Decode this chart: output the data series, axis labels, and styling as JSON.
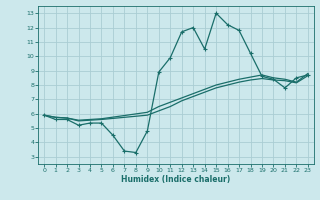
{
  "xlabel": "Humidex (Indice chaleur)",
  "bg_color": "#cce8ec",
  "grid_color": "#aacdd4",
  "line_color": "#1a6e6a",
  "xlim": [
    -0.5,
    23.5
  ],
  "ylim": [
    2.5,
    13.5
  ],
  "xticks": [
    0,
    1,
    2,
    3,
    4,
    5,
    6,
    7,
    8,
    9,
    10,
    11,
    12,
    13,
    14,
    15,
    16,
    17,
    18,
    19,
    20,
    21,
    22,
    23
  ],
  "yticks": [
    3,
    4,
    5,
    6,
    7,
    8,
    9,
    10,
    11,
    12,
    13
  ],
  "line1_x": [
    0,
    1,
    2,
    3,
    4,
    5,
    6,
    7,
    8,
    9,
    10,
    11,
    12,
    13,
    14,
    15,
    16,
    17,
    18,
    19,
    20,
    21,
    22,
    23
  ],
  "line1_y": [
    5.9,
    5.6,
    5.6,
    5.2,
    5.35,
    5.35,
    4.5,
    3.4,
    3.3,
    4.8,
    8.9,
    9.9,
    11.7,
    12.0,
    10.5,
    13.0,
    12.2,
    11.8,
    10.2,
    8.6,
    8.4,
    7.8,
    8.5,
    8.7
  ],
  "line2_x": [
    0,
    1,
    2,
    3,
    4,
    5,
    9,
    10,
    11,
    12,
    13,
    14,
    15,
    16,
    17,
    18,
    19,
    20,
    21,
    22,
    23
  ],
  "line2_y": [
    5.9,
    5.75,
    5.7,
    5.55,
    5.6,
    5.65,
    6.1,
    6.5,
    6.8,
    7.1,
    7.4,
    7.7,
    8.0,
    8.2,
    8.4,
    8.55,
    8.7,
    8.5,
    8.4,
    8.2,
    8.8
  ],
  "line3_x": [
    0,
    1,
    2,
    3,
    4,
    5,
    9,
    10,
    11,
    12,
    13,
    14,
    15,
    16,
    17,
    18,
    19,
    20,
    21,
    22,
    23
  ],
  "line3_y": [
    5.9,
    5.75,
    5.7,
    5.5,
    5.55,
    5.6,
    5.9,
    6.2,
    6.5,
    6.9,
    7.2,
    7.5,
    7.8,
    8.0,
    8.2,
    8.35,
    8.45,
    8.35,
    8.3,
    8.15,
    8.65
  ]
}
